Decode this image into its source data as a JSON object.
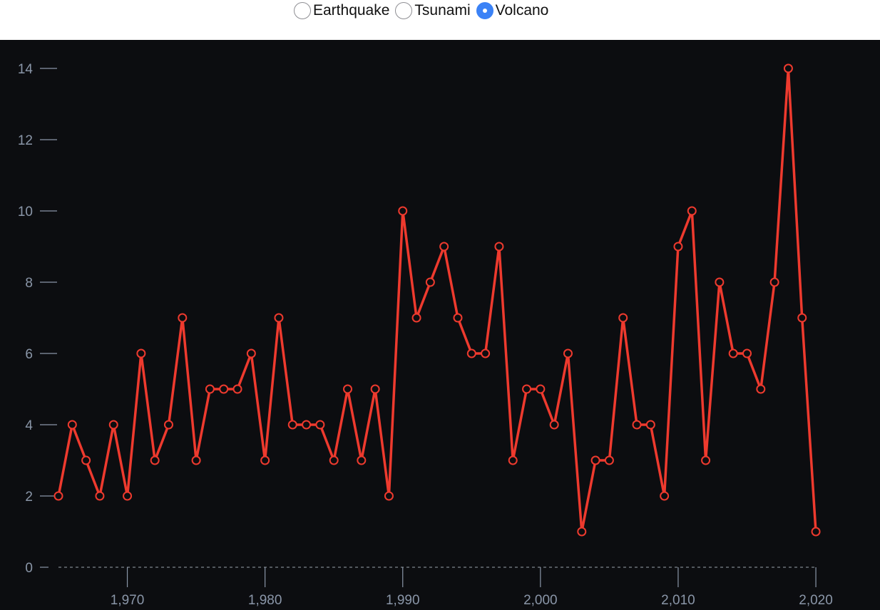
{
  "controls": {
    "options": [
      {
        "label": "Earthquake",
        "checked": false
      },
      {
        "label": "Tsunami",
        "checked": false
      },
      {
        "label": "Volcano",
        "checked": true
      }
    ]
  },
  "colors": {
    "background": "#0c0d10",
    "line": "#ee3a2e",
    "axis_text": "#8a96a8",
    "zero_line": "#9aa3ad",
    "selected": "#3b82f6"
  },
  "chart_data": {
    "type": "line",
    "title": "",
    "xlabel": "",
    "ylabel": "",
    "x": [
      1965,
      1966,
      1967,
      1968,
      1969,
      1970,
      1971,
      1972,
      1973,
      1974,
      1975,
      1976,
      1977,
      1978,
      1979,
      1980,
      1981,
      1982,
      1983,
      1984,
      1985,
      1986,
      1987,
      1988,
      1989,
      1990,
      1991,
      1992,
      1993,
      1994,
      1995,
      1996,
      1997,
      1998,
      1999,
      2000,
      2001,
      2002,
      2003,
      2004,
      2005,
      2006,
      2007,
      2008,
      2009,
      2010,
      2011,
      2012,
      2013,
      2014,
      2015,
      2016,
      2017,
      2018,
      2019,
      2020
    ],
    "series": [
      {
        "values": [
          2,
          4,
          3,
          2,
          4,
          2,
          6,
          3,
          4,
          7,
          3,
          5,
          5,
          5,
          6,
          3,
          7,
          4,
          4,
          4,
          3,
          5,
          3,
          5,
          2,
          10,
          7,
          8,
          9,
          7,
          6,
          6,
          9,
          3,
          5,
          5,
          4,
          6,
          1,
          3,
          3,
          7,
          4,
          4,
          2,
          9,
          10,
          3,
          8,
          6,
          6,
          5,
          8,
          14,
          7,
          1
        ]
      }
    ],
    "xlim": [
      1964,
      2023
    ],
    "ylim": [
      0,
      14
    ],
    "x_ticks": [
      1970,
      1980,
      1990,
      2000,
      2010,
      2020
    ],
    "x_tick_labels": [
      "1,970",
      "1,980",
      "1,990",
      "2,000",
      "2,010",
      "2,020"
    ],
    "y_ticks": [
      0,
      2,
      4,
      6,
      8,
      10,
      12,
      14
    ],
    "y_tick_labels": [
      "0",
      "2",
      "4",
      "6",
      "8",
      "10",
      "12",
      "14"
    ],
    "grid": false,
    "zero_line": "dashed"
  }
}
